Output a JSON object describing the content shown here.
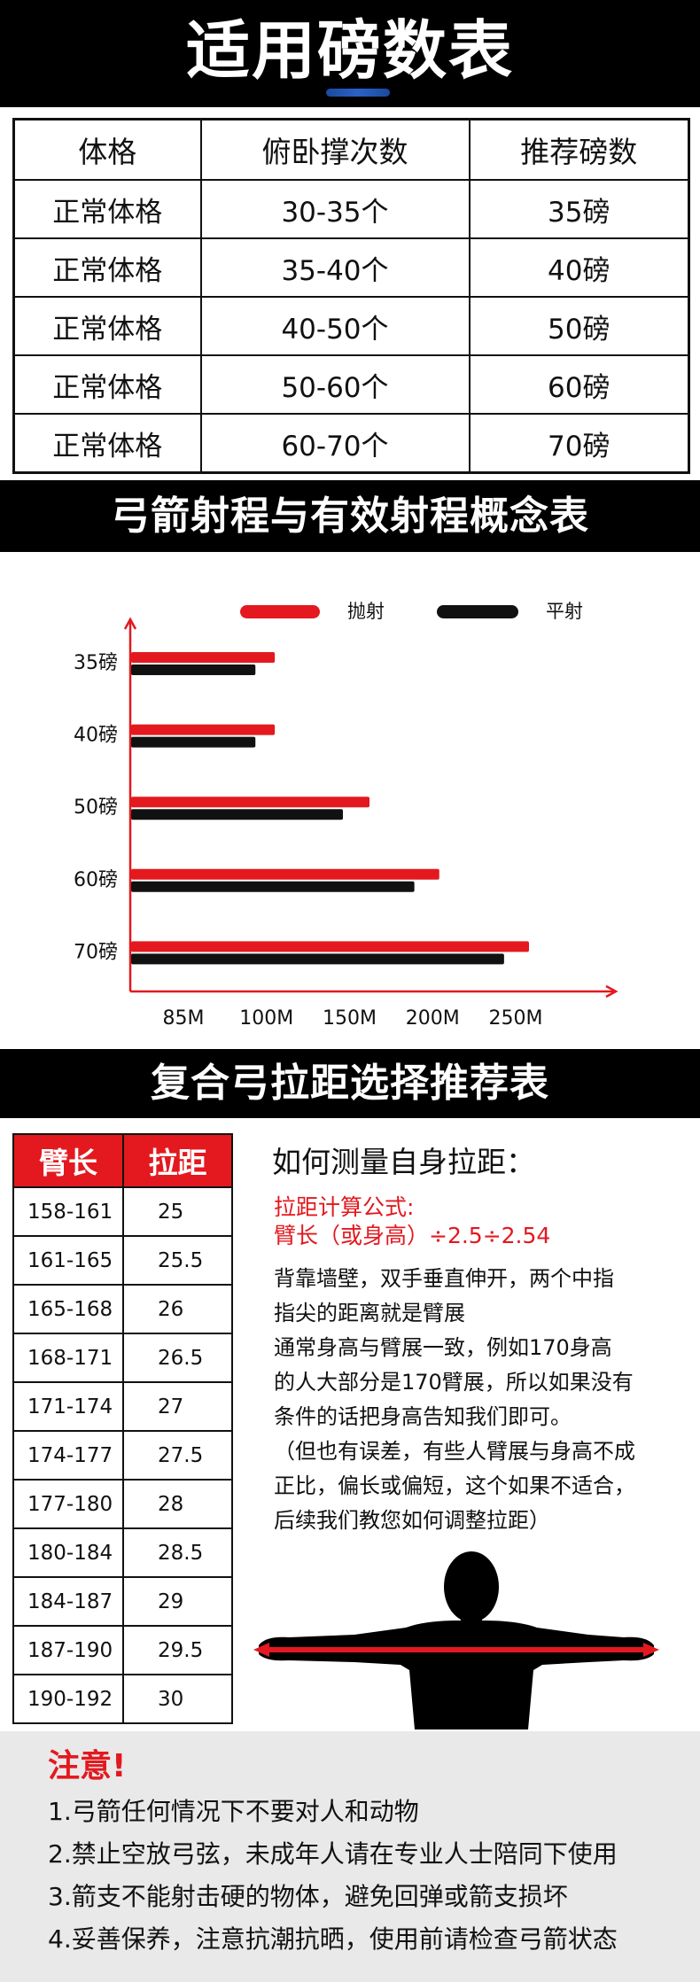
{
  "header": {
    "title": "适用磅数表"
  },
  "pound_table": {
    "columns": [
      "体格",
      "俯卧撑次数",
      "推荐磅数"
    ],
    "rows": [
      [
        "正常体格",
        "30-35个",
        "35磅"
      ],
      [
        "正常体格",
        "35-40个",
        "40磅"
      ],
      [
        "正常体格",
        "40-50个",
        "50磅"
      ],
      [
        "正常体格",
        "50-60个",
        "60磅"
      ],
      [
        "正常体格",
        "60-70个",
        "70磅"
      ]
    ]
  },
  "range_section": {
    "title": "弓箭射程与有效射程概念表"
  },
  "chart_data": {
    "type": "bar",
    "orientation": "horizontal",
    "categories": [
      "35磅",
      "40磅",
      "50磅",
      "60磅",
      "70磅"
    ],
    "series": [
      {
        "name": "抛射",
        "color": "#e3191f",
        "values": [
          105,
          105,
          162,
          204,
          258
        ]
      },
      {
        "name": "平射",
        "color": "#111111",
        "values": [
          98,
          98,
          146,
          189,
          243
        ]
      }
    ],
    "x_ticks": [
      85,
      100,
      150,
      200,
      250
    ],
    "x_tick_labels": [
      "85M",
      "100M",
      "150M",
      "200M",
      "250M"
    ],
    "legend_position": "top",
    "grid": false,
    "axis_color": "#e3191f"
  },
  "draw_section": {
    "title": "复合弓拉距选择推荐表"
  },
  "draw_table": {
    "columns": [
      "臂长",
      "拉距"
    ],
    "rows": [
      [
        "158-161",
        "25"
      ],
      [
        "161-165",
        "25.5"
      ],
      [
        "165-168",
        "26"
      ],
      [
        "168-171",
        "26.5"
      ],
      [
        "171-174",
        "27"
      ],
      [
        "174-177",
        "27.5"
      ],
      [
        "177-180",
        "28"
      ],
      [
        "180-184",
        "28.5"
      ],
      [
        "184-187",
        "29"
      ],
      [
        "187-190",
        "29.5"
      ],
      [
        "190-192",
        "30"
      ]
    ]
  },
  "measure": {
    "title": "如何测量自身拉距：",
    "formula_label": "拉距计算公式:",
    "formula": "臂长（或身高）÷2.5÷2.54",
    "lines": [
      "背靠墙壁，双手垂直伸开，两个中指",
      "指尖的距离就是臂展",
      "通常身高与臂展一致，例如170身高",
      "的人大部分是170臂展，所以如果没有",
      "条件的话把身高告知我们即可。",
      "（但也有误差，有些人臂展与身高不成",
      "正比，偏长或偏短，这个如果不适合，",
      "后续我们教您如何调整拉距）"
    ],
    "illustration_icon": "arm-span-silhouette-icon"
  },
  "notice": {
    "title": "注意!",
    "items": [
      "1.弓箭任何情况下不要对人和动物",
      "2.禁止空放弓弦，未成年人请在专业人士陪同下使用",
      "3.箭支不能射击硬的物体，避免回弹或箭支损坏",
      "4.妥善保养，注意抗潮抗晒，使用前请检查弓箭状态"
    ]
  },
  "colors": {
    "accent_red": "#e3191f",
    "header_blue": "#2a62c9",
    "bar_black": "#000000",
    "notice_bg": "#e9e9e9"
  }
}
